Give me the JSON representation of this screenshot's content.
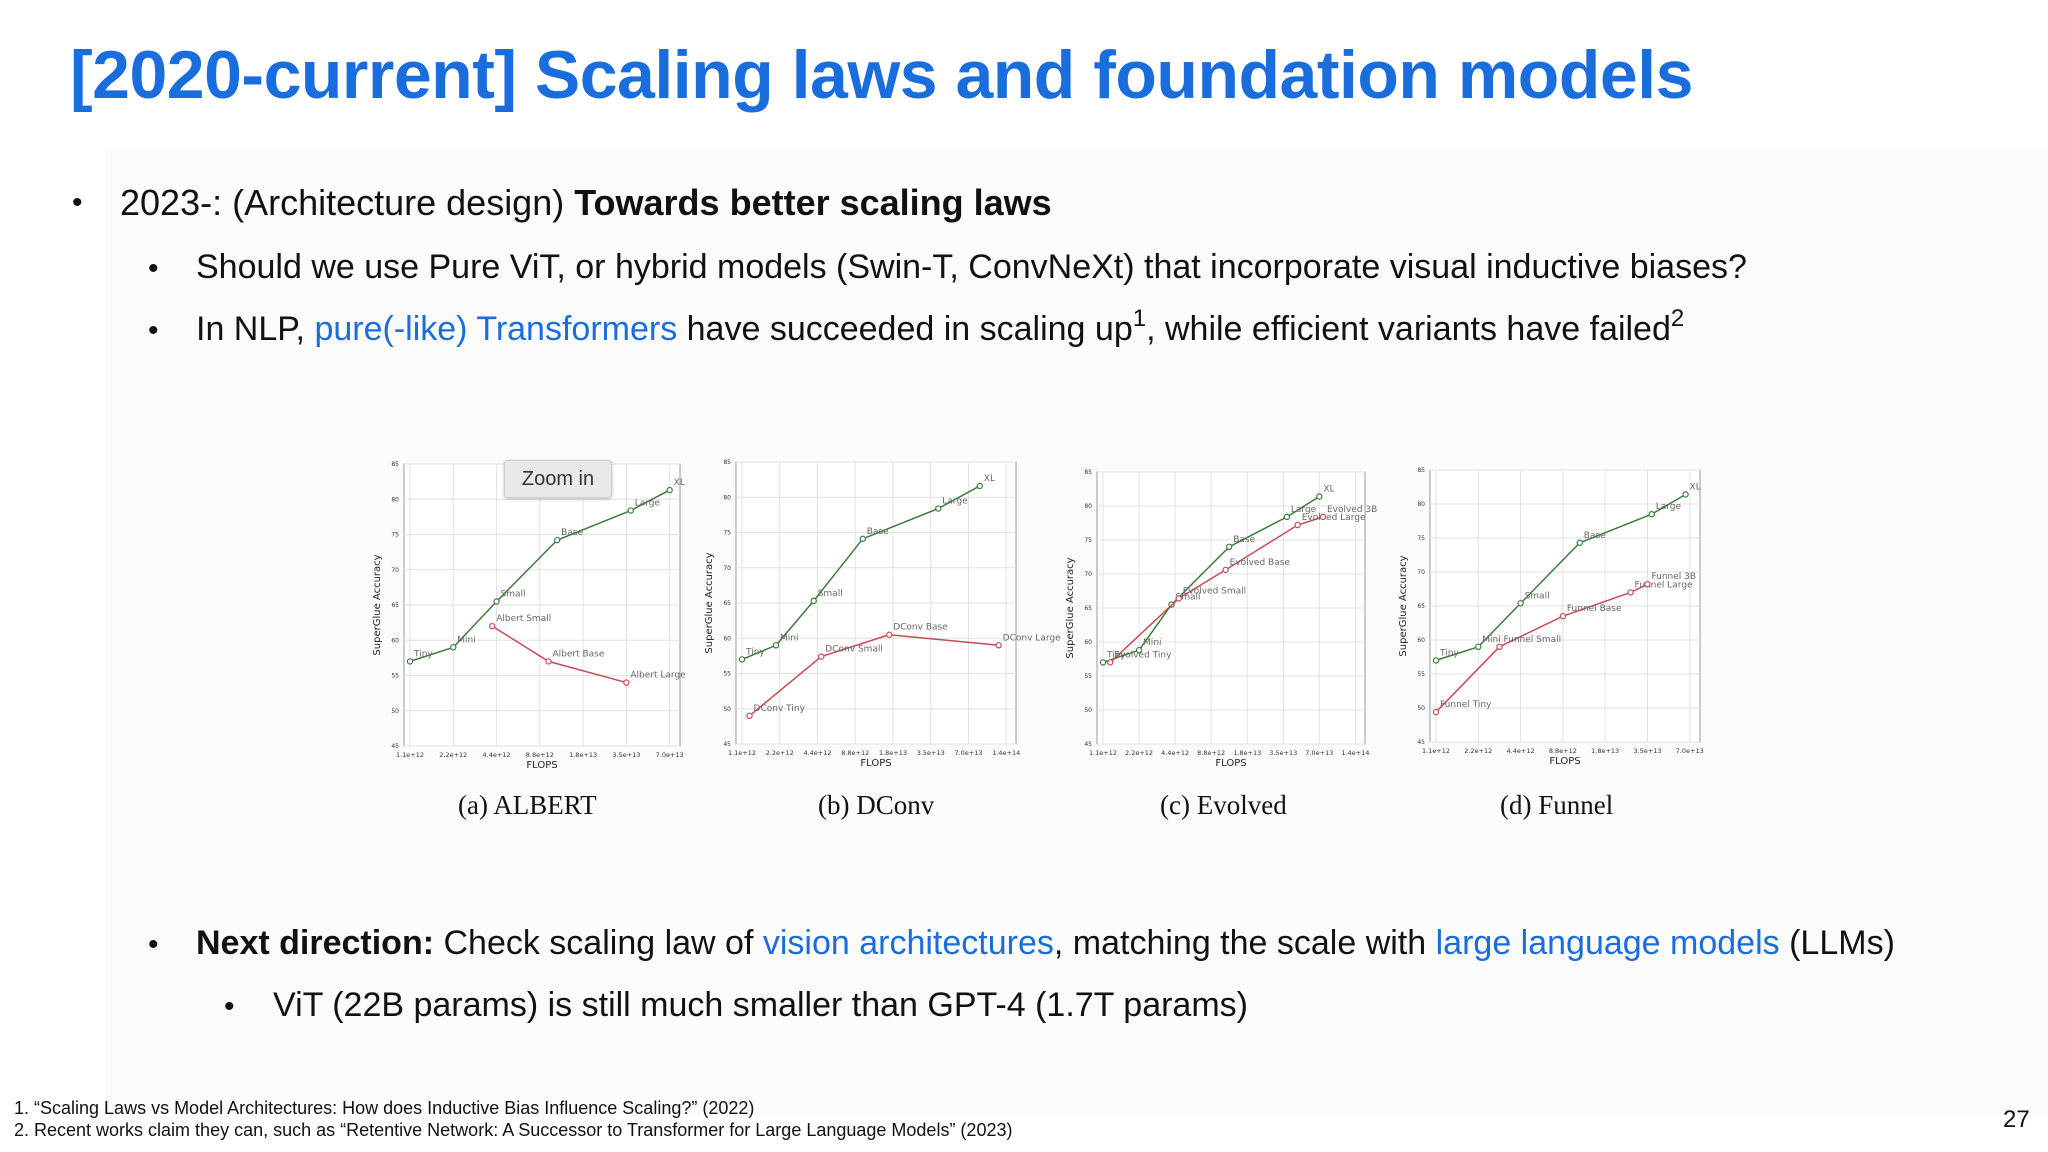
{
  "slide": {
    "title": "[2020-current] Scaling laws and foundation models",
    "b1": {
      "pre": "2023-: (Architecture design) ",
      "bold": "Towards better scaling laws"
    },
    "b1a": "Should we use Pure ViT, or hybrid models (Swin-T, ConvNeXt) that incorporate visual inductive biases?",
    "b1b": {
      "pre": "In NLP, ",
      "link": "pure(-like) Transformers",
      "mid": " have succeeded in scaling up",
      "sup1": "1",
      "post": ", while efficient variants have failed",
      "sup2": "2"
    },
    "b2": {
      "bold": "Next direction:",
      "pre": " Check scaling law of ",
      "link1": "vision architectures",
      "mid": ", matching the scale with ",
      "link2": "large language models",
      "post": " (LLMs)"
    },
    "b2a": "ViT (22B params) is still much smaller than GPT-4 (1.7T params)",
    "zoom_label": "Zoom in",
    "footnote1": "1. “Scaling Laws vs Model Architectures: How does Inductive Bias Influence Scaling?” (2022)",
    "footnote2": "2. Recent works claim they can, such as “Retentive Network: A Successor to Transformer for Large Language Models” (2023)",
    "page_number": "27"
  },
  "chart_data": [
    {
      "type": "line",
      "caption": "(a) ALBERT",
      "xlabel": "FLOPS",
      "ylabel": "SuperGlue Accuracy",
      "ylim": [
        45,
        85
      ],
      "yticks": [
        45,
        50,
        55,
        60,
        65,
        70,
        75,
        80,
        85
      ],
      "xticks": [
        "1.1e+12",
        "2.2e+12",
        "4.4e+12",
        "8.8e+12",
        "1.8e+13",
        "3.5e+13",
        "7.0e+13"
      ],
      "grid": true,
      "colors": {
        "green": "#3a7d3a",
        "red": "#c84a55"
      },
      "series": [
        {
          "color": "green",
          "x": [
            0.0,
            1.0,
            2.0,
            3.4,
            5.1,
            6.0
          ],
          "y": [
            57,
            59,
            65.5,
            74.2,
            78.4,
            81.3
          ],
          "labels": [
            "Tiny",
            "Mini",
            "Small",
            "Base",
            "Large",
            "XL"
          ]
        },
        {
          "color": "red",
          "x": [
            1.9,
            3.2,
            5.0
          ],
          "y": [
            62,
            57,
            54
          ],
          "labels": [
            "Albert Small",
            "Albert Base",
            "Albert Large"
          ]
        }
      ]
    },
    {
      "type": "line",
      "caption": "(b) DConv",
      "xlabel": "FLOPS",
      "ylabel": "SuperGlue Accuracy",
      "ylim": [
        45,
        85
      ],
      "yticks": [
        45,
        50,
        55,
        60,
        65,
        70,
        75,
        80,
        85
      ],
      "xticks": [
        "1.1e+12",
        "2.2e+12",
        "4.4e+12",
        "8.8e+12",
        "1.8e+13",
        "3.5e+13",
        "7.0e+13",
        "1.4e+14"
      ],
      "grid": true,
      "colors": {
        "green": "#3a7d3a",
        "red": "#c84a55"
      },
      "series": [
        {
          "color": "green",
          "x": [
            0.0,
            0.9,
            1.9,
            3.2,
            5.2,
            6.3
          ],
          "y": [
            57,
            59,
            65.3,
            74.1,
            78.4,
            81.6
          ],
          "labels": [
            "Tiny",
            "Mini",
            "Small",
            "Base",
            "Large",
            "XL"
          ]
        },
        {
          "color": "red",
          "x": [
            0.2,
            2.1,
            3.9,
            6.8
          ],
          "y": [
            49,
            57.4,
            60.5,
            59
          ],
          "labels": [
            "DConv Tiny",
            "DConv Small",
            "DConv Base",
            "DConv Large"
          ]
        }
      ]
    },
    {
      "type": "line",
      "caption": "(c) Evolved",
      "xlabel": "FLOPS",
      "ylabel": "SuperGlue Accuracy",
      "ylim": [
        45,
        85
      ],
      "yticks": [
        45,
        50,
        55,
        60,
        65,
        70,
        75,
        80,
        85
      ],
      "xticks": [
        "1.1e+12",
        "2.2e+12",
        "4.4e+12",
        "8.8e+12",
        "1.8e+13",
        "3.5e+13",
        "7.0e+13",
        "1.4e+14"
      ],
      "grid": true,
      "colors": {
        "green": "#3a7d3a",
        "red": "#c84a55"
      },
      "series": [
        {
          "color": "green",
          "x": [
            0.0,
            1.0,
            1.9,
            3.5,
            5.1,
            6.0
          ],
          "y": [
            57,
            58.8,
            65.5,
            74,
            78.4,
            81.4
          ],
          "labels": [
            "Tiny",
            "Mini",
            "Small",
            "Base",
            "Large",
            "XL"
          ]
        },
        {
          "color": "red",
          "x": [
            0.2,
            2.1,
            3.4,
            5.4,
            6.1
          ],
          "y": [
            57,
            66.4,
            70.6,
            77.2,
            78.4
          ],
          "labels": [
            "Evolved Tiny",
            "Evolved Small",
            "Evolved Base",
            "Evolved Large",
            "Evolved 3B"
          ]
        }
      ]
    },
    {
      "type": "line",
      "caption": "(d) Funnel",
      "xlabel": "FLOPS",
      "ylabel": "SuperGlue Accuracy",
      "ylim": [
        45,
        85
      ],
      "yticks": [
        45,
        50,
        55,
        60,
        65,
        70,
        75,
        80,
        85
      ],
      "xticks": [
        "1.1e+12",
        "2.2e+12",
        "4.4e+12",
        "8.8e+12",
        "1.8e+13",
        "3.5e+13",
        "7.0e+13"
      ],
      "grid": true,
      "colors": {
        "green": "#3a7d3a",
        "red": "#c84a55"
      },
      "series": [
        {
          "color": "green",
          "x": [
            0.0,
            1.0,
            2.0,
            3.4,
            5.1,
            5.9
          ],
          "y": [
            57,
            59,
            65.4,
            74.3,
            78.5,
            81.4
          ],
          "labels": [
            "Tiny",
            "Mini",
            "Small",
            "Base",
            "Large",
            "XL"
          ]
        },
        {
          "color": "red",
          "x": [
            0.0,
            1.5,
            3.0,
            4.6,
            5.0
          ],
          "y": [
            49.4,
            59,
            63.5,
            67,
            68.2
          ],
          "labels": [
            "Funnel Tiny",
            "Funnel Small",
            "Funnel Base",
            "Funnel Large",
            "Funnel 3B"
          ]
        }
      ]
    }
  ]
}
